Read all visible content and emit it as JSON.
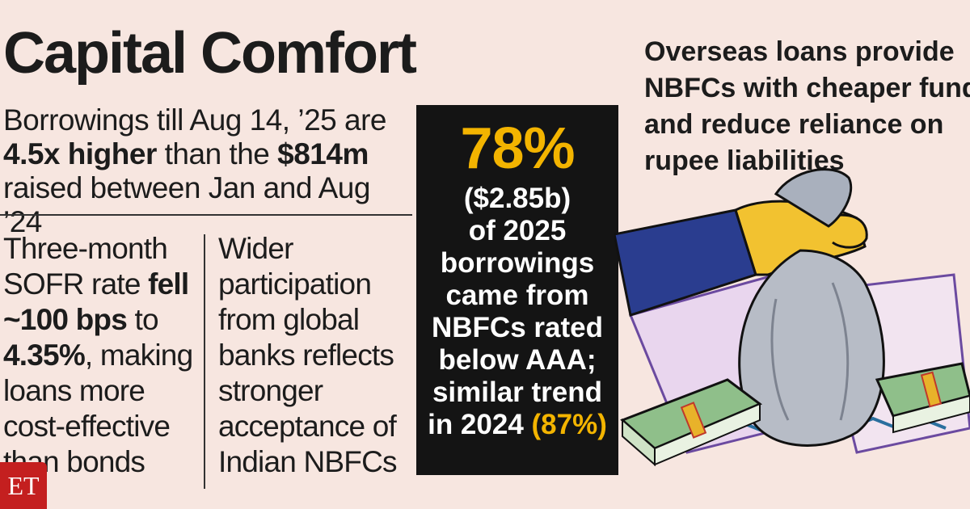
{
  "title": "Capital Comfort",
  "intro": {
    "part1": "Borrowings till Aug 14, ’25 are ",
    "bold1": "4.5x higher",
    "part2": " than the ",
    "bold2": "$814m",
    "part3": " raised between Jan and Aug ’24"
  },
  "col1": {
    "part1": "Three-month SOFR rate ",
    "bold1": "fell ~100 bps",
    "part2": " to ",
    "bold2": "4.35%",
    "part3": ", making loans more cost-effective than bonds"
  },
  "col2": {
    "text": "Wider participation from global banks reflects stronger acceptance of Indian NBFCs"
  },
  "highlight": {
    "percent": "78%",
    "amount": "($2.85b)",
    "body": "of 2025 borrowings came from NBFCs rated below AAA; similar trend in 2024",
    "prev_pct": "(87%)"
  },
  "right_caption": {
    "line1": "Overseas loans provide",
    "line2": "NBFCs with cheaper funds",
    "line3": "and reduce reliance on",
    "line4": "rupee liabilities"
  },
  "logo": "ET",
  "colors": {
    "background": "#f7e6e0",
    "accent": "#f3b400",
    "box": "#141414",
    "logo": "#c41f1f"
  }
}
